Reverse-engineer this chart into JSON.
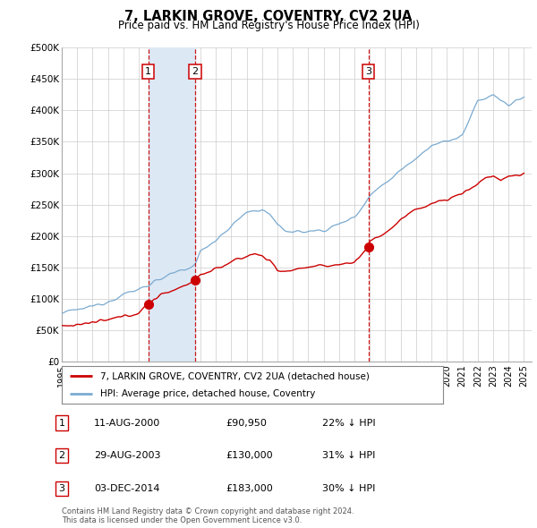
{
  "title": "7, LARKIN GROVE, COVENTRY, CV2 2UA",
  "subtitle": "Price paid vs. HM Land Registry's House Price Index (HPI)",
  "red_label": "7, LARKIN GROVE, COVENTRY, CV2 2UA (detached house)",
  "blue_label": "HPI: Average price, detached house, Coventry",
  "ylabel_ticks": [
    "£0",
    "£50K",
    "£100K",
    "£150K",
    "£200K",
    "£250K",
    "£300K",
    "£350K",
    "£400K",
    "£450K",
    "£500K"
  ],
  "ytick_values": [
    0,
    50000,
    100000,
    150000,
    200000,
    250000,
    300000,
    350000,
    400000,
    450000,
    500000
  ],
  "xlim_start": 1995.0,
  "xlim_end": 2025.5,
  "ylim_min": 0,
  "ylim_max": 500000,
  "sale_markers": [
    {
      "label": "1",
      "date": 2000.62,
      "price": 90950,
      "pct": "22% ↓ HPI",
      "date_str": "11-AUG-2000",
      "price_str": "£90,950"
    },
    {
      "label": "2",
      "date": 2003.66,
      "price": 130000,
      "pct": "31% ↓ HPI",
      "date_str": "29-AUG-2003",
      "price_str": "£130,000"
    },
    {
      "label": "3",
      "date": 2014.92,
      "price": 183000,
      "pct": "30% ↓ HPI",
      "date_str": "03-DEC-2014",
      "price_str": "£183,000"
    }
  ],
  "bg_color": "#ffffff",
  "plot_bg": "#ffffff",
  "grid_color": "#cccccc",
  "red_color": "#cc0000",
  "blue_color": "#7aaad0",
  "marker_box_color": "#cc0000",
  "dashed_line_color": "#cc0000",
  "shade_color": "#dde8f5",
  "footnote": "Contains HM Land Registry data © Crown copyright and database right 2024.\nThis data is licensed under the Open Government Licence v3.0.",
  "xtick_years": [
    1995,
    1996,
    1997,
    1998,
    1999,
    2000,
    2001,
    2002,
    2003,
    2004,
    2005,
    2006,
    2007,
    2008,
    2009,
    2010,
    2011,
    2012,
    2013,
    2014,
    2015,
    2016,
    2017,
    2018,
    2019,
    2020,
    2021,
    2022,
    2023,
    2024,
    2025
  ]
}
